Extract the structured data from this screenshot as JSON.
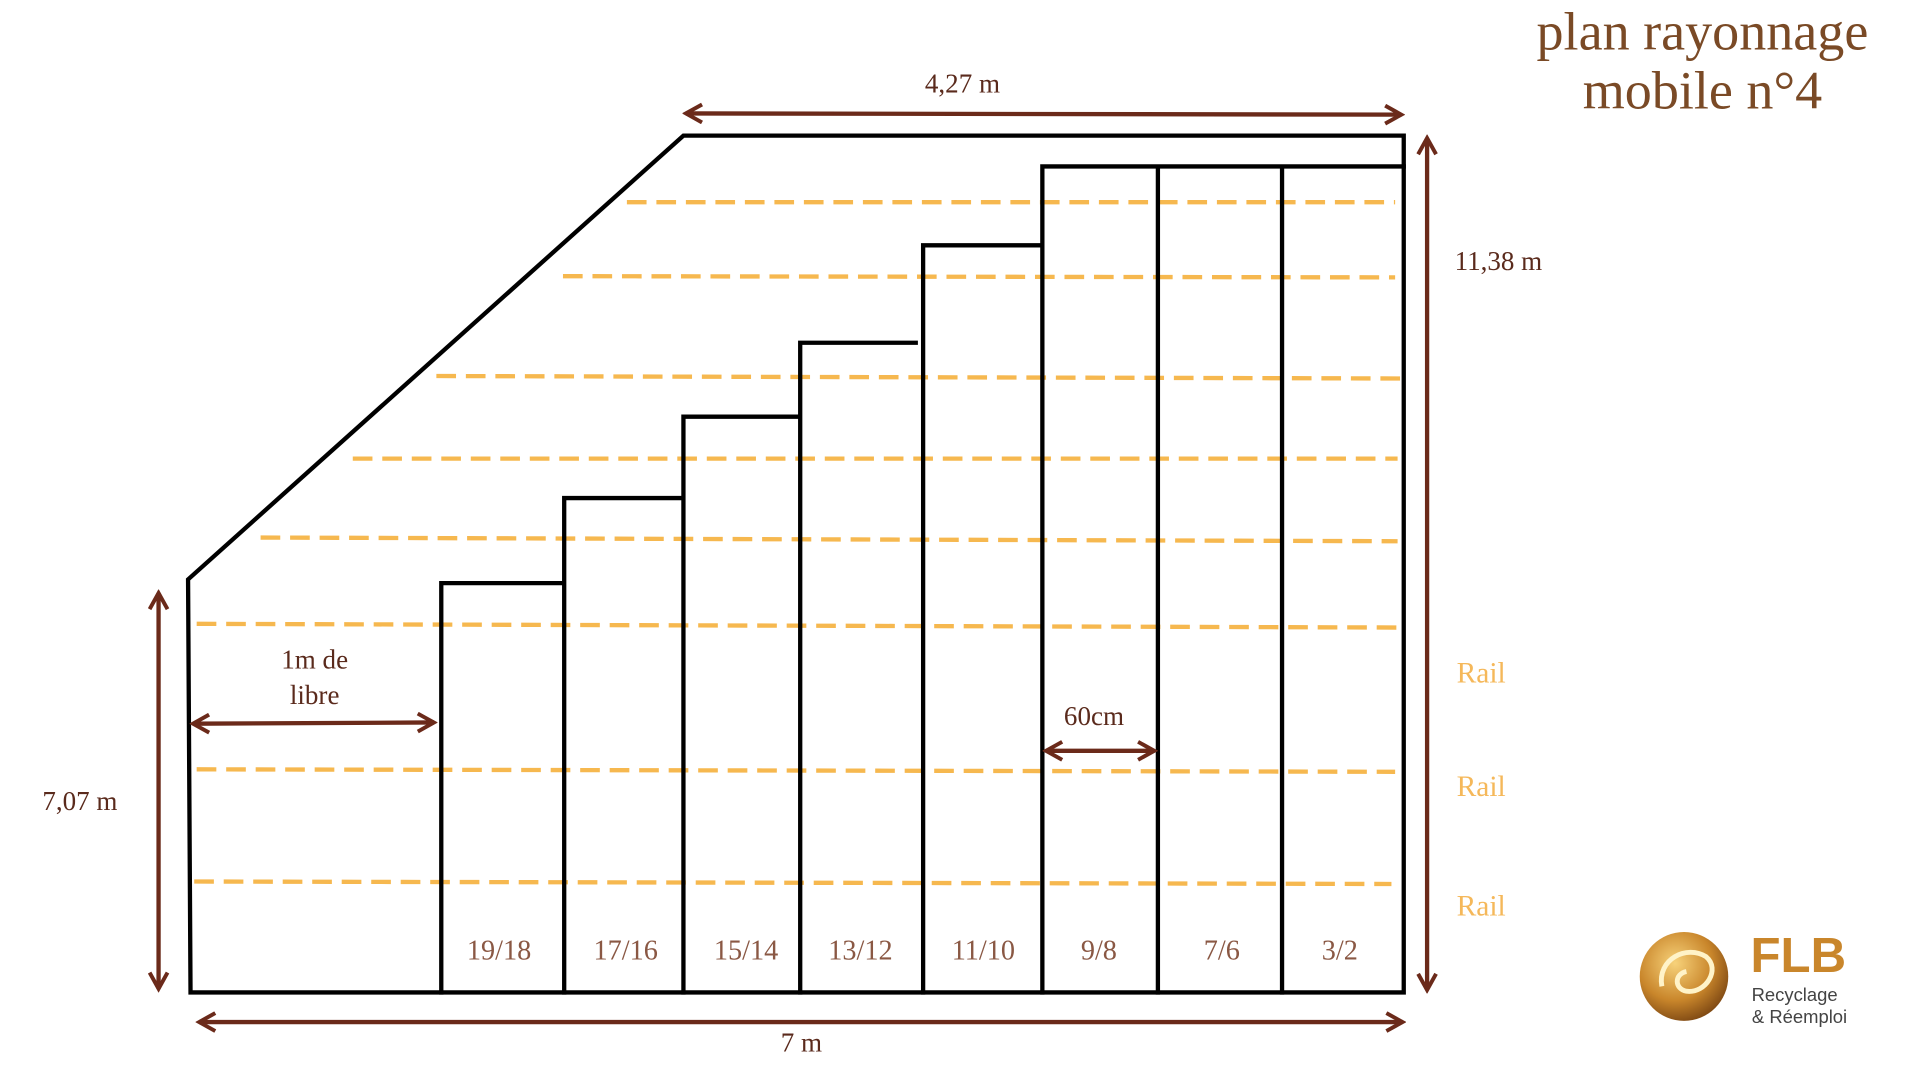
{
  "title": [
    "plan rayonnage",
    "mobile n°4"
  ],
  "dimensions": {
    "top": "4,27 m",
    "right": "11,38 m",
    "left": "7,07 m",
    "bottom": "7 m",
    "free": [
      "1m de",
      "libre"
    ],
    "module": "60cm"
  },
  "sections": [
    "19/18",
    "17/16",
    "15/14",
    "13/12",
    "11/10",
    "9/8",
    "7/6",
    "3/2"
  ],
  "rails": [
    "Rail",
    "Rail",
    "Rail"
  ],
  "logo": {
    "name": "FLB",
    "tagline": [
      "Recyclage",
      "& Réemploi"
    ]
  }
}
